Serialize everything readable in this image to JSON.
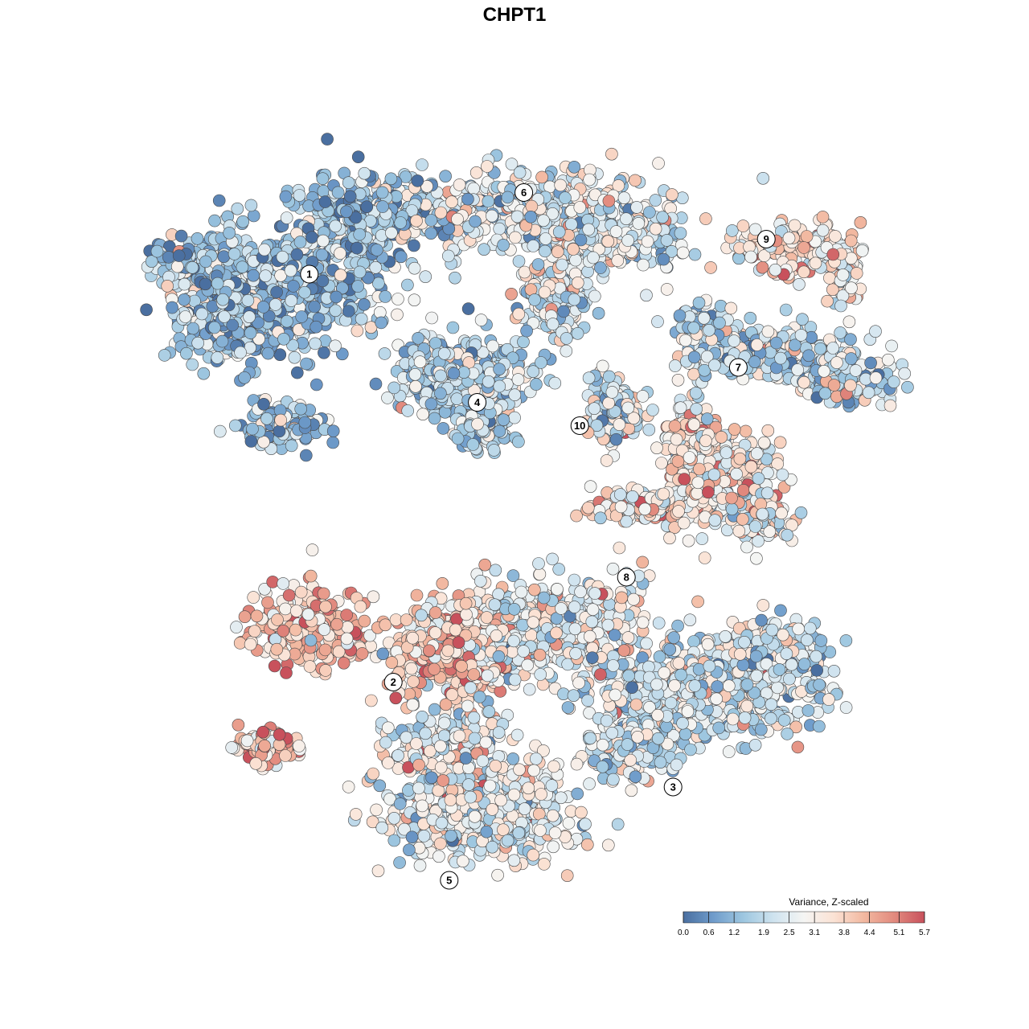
{
  "chart_data": {
    "type": "scatter",
    "title": "CHPT1",
    "xlabel": "",
    "ylabel": "",
    "grid": false,
    "point_count_approx": 9000,
    "legend": {
      "title": "Variance, Z-scaled",
      "placement": "bottom-right",
      "orientation": "horizontal",
      "range": [
        0.0,
        5.7
      ],
      "ticks": [
        "0.0",
        "0.6",
        "1.2",
        "1.9",
        "2.5",
        "3.1",
        "3.8",
        "4.4",
        "5.1",
        "5.7"
      ],
      "colors": [
        "#4a6fa0",
        "#6f9ccb",
        "#9ec7e0",
        "#cfe3ef",
        "#f5f5f3",
        "#fbe2d4",
        "#f2b8a0",
        "#e28a7e",
        "#c8515c"
      ]
    },
    "clusters": [
      {
        "label": "1",
        "x": 2.8,
        "y": 5.2,
        "mean_value": 1.4
      },
      {
        "label": "2",
        "x": 3.7,
        "y": 1.7,
        "mean_value": 3.9
      },
      {
        "label": "3",
        "x": 6.7,
        "y": 0.8,
        "mean_value": 2.2
      },
      {
        "label": "4",
        "x": 4.6,
        "y": 4.1,
        "mean_value": 1.8
      },
      {
        "label": "5",
        "x": 4.3,
        "y": 0.0,
        "mean_value": 2.6
      },
      {
        "label": "6",
        "x": 5.1,
        "y": 5.9,
        "mean_value": 2.4
      },
      {
        "label": "7",
        "x": 7.4,
        "y": 4.4,
        "mean_value": 2.0
      },
      {
        "label": "8",
        "x": 6.2,
        "y": 2.6,
        "mean_value": 3.2
      },
      {
        "label": "9",
        "x": 7.7,
        "y": 5.5,
        "mean_value": 3.3
      },
      {
        "label": "10",
        "x": 5.7,
        "y": 3.9,
        "mean_value": 1.9
      }
    ]
  }
}
